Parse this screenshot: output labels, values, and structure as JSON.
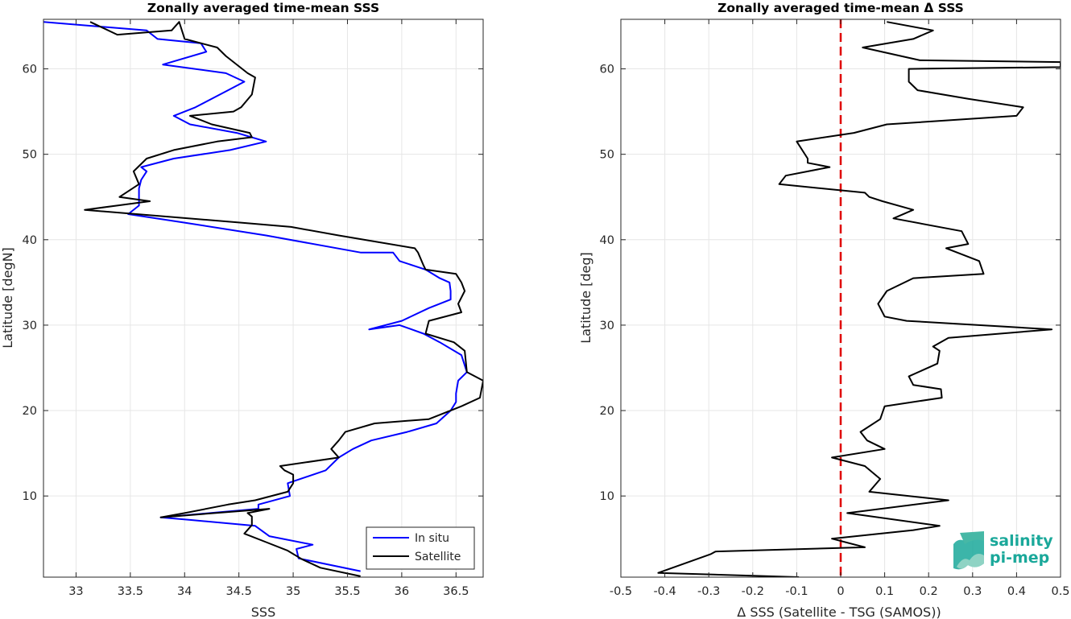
{
  "chart_data": [
    {
      "type": "line",
      "title": "Zonally averaged time-mean SSS",
      "xlabel": "SSS",
      "ylabel": "Latitude [degN]",
      "xlim": [
        32.7,
        36.75
      ],
      "ylim": [
        0.5,
        65.8
      ],
      "xticks": [
        33,
        33.5,
        34,
        34.5,
        35,
        35.5,
        36,
        36.5
      ],
      "xtick_labels": [
        "33",
        "33.5",
        "34",
        "34.5",
        "35",
        "35.5",
        "36",
        "36.5"
      ],
      "yticks": [
        10,
        20,
        30,
        40,
        50,
        60
      ],
      "ytick_labels": [
        "10",
        "20",
        "30",
        "40",
        "50",
        "60"
      ],
      "grid": true,
      "legend": "bottom-right",
      "series": [
        {
          "name": "In situ",
          "color": "#0000ff",
          "x": [
            35.62,
            35.05,
            35.03,
            35.18,
            34.78,
            34.65,
            34.05,
            33.78,
            34.68,
            34.68,
            34.97,
            34.95,
            35.3,
            35.42,
            35.55,
            35.72,
            36.05,
            36.32,
            36.45,
            36.5,
            36.5,
            36.52,
            36.6,
            36.55,
            36.35,
            36.2,
            35.98,
            35.7,
            36.0,
            36.25,
            36.45,
            36.45,
            36.44,
            36.35,
            36.22,
            35.98,
            35.92,
            35.62,
            34.75,
            34.0,
            33.48,
            33.58,
            33.58,
            33.6,
            33.65,
            33.6,
            33.9,
            34.42,
            34.75,
            34.48,
            34.05,
            33.9,
            34.1,
            34.4,
            34.55,
            34.38,
            33.8,
            34.2,
            34.15,
            33.75,
            33.65,
            32.7
          ],
          "y": [
            1.2,
            2.7,
            3.8,
            4.3,
            5.3,
            6.5,
            7.2,
            7.5,
            8.5,
            9.0,
            10.0,
            11.5,
            13.0,
            14.5,
            15.5,
            16.5,
            17.5,
            18.5,
            20.0,
            21.0,
            22.0,
            23.5,
            24.5,
            26.5,
            28.0,
            29.0,
            30.0,
            29.5,
            30.5,
            32.0,
            33.0,
            34.0,
            35.0,
            35.5,
            36.5,
            37.5,
            38.5,
            38.5,
            40.5,
            42.0,
            43.0,
            44.0,
            46.0,
            47.0,
            48.0,
            48.5,
            49.5,
            50.5,
            51.5,
            52.5,
            53.5,
            54.5,
            55.5,
            57.5,
            58.5,
            59.5,
            60.5,
            62.0,
            63.0,
            63.5,
            64.5,
            65.5
          ]
        },
        {
          "name": "Satellite",
          "color": "#000000",
          "x": [
            35.62,
            35.25,
            35.08,
            34.95,
            34.75,
            34.55,
            34.62,
            34.62,
            34.58,
            34.78,
            33.78,
            34.0,
            34.4,
            34.65,
            34.95,
            35.0,
            35.0,
            34.92,
            34.88,
            35.42,
            35.35,
            35.42,
            35.48,
            35.75,
            36.25,
            36.55,
            36.72,
            36.75,
            36.6,
            36.58,
            36.48,
            36.22,
            36.25,
            36.55,
            36.52,
            36.58,
            36.55,
            36.5,
            36.22,
            36.2,
            36.15,
            36.12,
            35.42,
            34.98,
            34.52,
            33.08,
            33.68,
            33.4,
            33.58,
            33.53,
            33.65,
            33.9,
            34.3,
            34.62,
            34.6,
            34.25,
            34.05,
            34.45,
            34.52,
            34.62,
            34.65,
            34.58,
            34.38,
            34.3,
            34.0,
            33.95,
            33.88,
            33.38,
            33.13
          ],
          "y": [
            0.6,
            1.6,
            2.6,
            3.6,
            4.6,
            5.6,
            6.6,
            7.6,
            8.0,
            8.5,
            7.5,
            8.0,
            9.0,
            9.5,
            10.5,
            11.5,
            12.5,
            13.0,
            13.5,
            14.5,
            15.5,
            16.5,
            17.5,
            18.5,
            19.0,
            20.5,
            21.5,
            23.5,
            24.5,
            27.0,
            28.0,
            29.0,
            30.5,
            31.5,
            32.5,
            34.0,
            35.0,
            36.0,
            36.5,
            37.0,
            38.5,
            39.0,
            40.5,
            41.5,
            42.0,
            43.5,
            44.5,
            45.0,
            46.5,
            48.0,
            49.5,
            50.5,
            51.5,
            52.0,
            52.5,
            53.5,
            54.5,
            55.0,
            55.5,
            57.0,
            59.0,
            59.5,
            61.5,
            62.5,
            63.5,
            65.5,
            64.5,
            64.0,
            65.5
          ]
        }
      ]
    },
    {
      "type": "line",
      "title": "Zonally averaged time-mean Δ SSS",
      "xlabel": "Δ SSS (Satellite - TSG (SAMOS))",
      "ylabel": "Latitude [deg]",
      "xlim": [
        -0.5,
        0.5
      ],
      "ylim": [
        0.5,
        65.8
      ],
      "xticks": [
        -0.5,
        -0.4,
        -0.3,
        -0.2,
        -0.1,
        0,
        0.1,
        0.2,
        0.3,
        0.4,
        0.5
      ],
      "xtick_labels": [
        "-0.5",
        "-0.4",
        "-0.3",
        "-0.2",
        "-0.1",
        "0",
        "0.1",
        "0.2",
        "0.3",
        "0.4",
        "0.5"
      ],
      "yticks": [
        10,
        20,
        30,
        40,
        50,
        60
      ],
      "ytick_labels": [
        "10",
        "20",
        "30",
        "40",
        "50",
        "60"
      ],
      "grid": true,
      "reference_line": {
        "x": 0,
        "color": "#e00000",
        "style": "dashed"
      },
      "series": [
        {
          "name": "",
          "color": "#000000",
          "x": [
            -0.095,
            -0.415,
            -0.295,
            -0.285,
            0.055,
            -0.02,
            0.165,
            0.225,
            0.015,
            0.245,
            0.065,
            0.09,
            0.055,
            -0.02,
            0.1,
            0.06,
            0.045,
            0.09,
            0.1,
            0.23,
            0.228,
            0.165,
            0.155,
            0.22,
            0.225,
            0.21,
            0.245,
            0.48,
            0.15,
            0.1,
            0.085,
            0.105,
            0.165,
            0.325,
            0.315,
            0.24,
            0.29,
            0.275,
            0.12,
            0.165,
            0.095,
            0.065,
            0.055,
            -0.14,
            -0.125,
            -0.025,
            -0.075,
            -0.075,
            -0.1,
            0.03,
            0.105,
            0.4,
            0.415,
            0.29,
            0.175,
            0.155,
            0.155,
            0.5,
            0.5,
            0.18,
            0.05,
            0.165,
            0.21,
            0.105
          ],
          "y": [
            0.5,
            1.0,
            3.2,
            3.5,
            4.0,
            5.0,
            6.0,
            6.5,
            8.0,
            9.5,
            10.5,
            12.0,
            13.5,
            14.5,
            15.5,
            16.5,
            17.5,
            19.0,
            20.5,
            21.5,
            22.5,
            23.0,
            24.0,
            25.5,
            27.0,
            27.5,
            28.5,
            29.5,
            30.5,
            31.0,
            32.5,
            34.0,
            35.5,
            36.0,
            37.5,
            39.0,
            39.5,
            41.0,
            42.5,
            43.5,
            44.5,
            45.0,
            45.5,
            46.5,
            47.5,
            48.5,
            49.0,
            49.5,
            51.5,
            52.5,
            53.5,
            54.5,
            55.5,
            56.5,
            57.5,
            58.5,
            60.0,
            60.2,
            60.8,
            61.0,
            62.5,
            63.5,
            64.5,
            65.5
          ]
        }
      ]
    }
  ],
  "legend": {
    "in_situ_label": "In situ",
    "satellite_label": "Satellite"
  },
  "logo": {
    "line1": "salinity",
    "line2": "pi-mep",
    "color": "#1aa89a"
  }
}
